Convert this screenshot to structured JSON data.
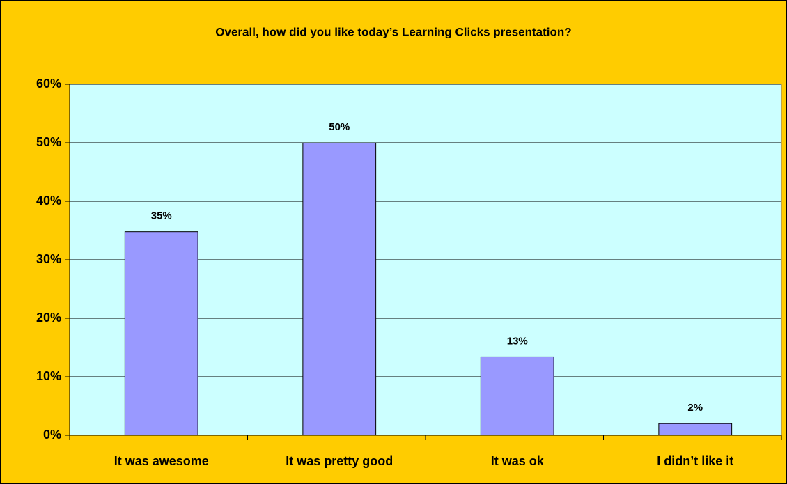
{
  "chart_data": {
    "type": "bar",
    "title": "Overall, how did you like today’s Learning Clicks presentation?",
    "categories": [
      "It was awesome",
      "It was pretty good",
      "It was ok",
      "I didn’t like it"
    ],
    "values": [
      34.8,
      50,
      13.4,
      2
    ],
    "value_labels": [
      "35%",
      "50%",
      "13%",
      "2%"
    ],
    "color": "#9999ff",
    "ylim": [
      0,
      60
    ],
    "yticks": [
      {
        "value": 0,
        "label": "0%"
      },
      {
        "value": 10,
        "label": "10%"
      },
      {
        "value": 20,
        "label": "20%"
      },
      {
        "value": 30,
        "label": "30%"
      },
      {
        "value": 40,
        "label": "40%"
      },
      {
        "value": 50,
        "label": "50%"
      },
      {
        "value": 60,
        "label": "60%"
      }
    ],
    "grid": true
  }
}
